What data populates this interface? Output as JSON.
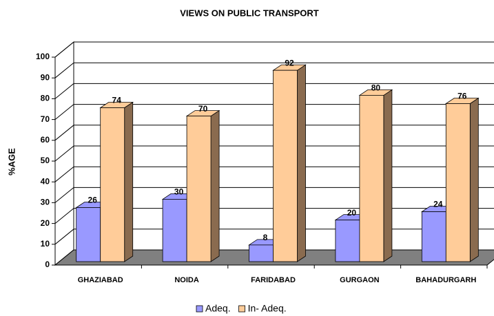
{
  "chart_data": {
    "type": "bar3d",
    "title": "VIEWS ON PUBLIC TRANSPORT",
    "y_label": "%AGE",
    "categories": [
      "GHAZIABAD",
      "NOIDA",
      "FARIDABAD",
      "GURGAON",
      "BAHADURGARH"
    ],
    "series": [
      {
        "name": "Adeq.",
        "color": "#9999ff",
        "side": "#6c6cb4",
        "values": [
          26,
          30,
          8,
          20,
          24
        ]
      },
      {
        "name": "In- Adeq.",
        "color": "#ffcc99",
        "side": "#8a6b4f",
        "values": [
          74,
          70,
          92,
          80,
          76
        ]
      }
    ],
    "ylim": [
      0,
      100
    ],
    "yticks": [
      0,
      10,
      20,
      30,
      40,
      50,
      60,
      70,
      80,
      90,
      100
    ],
    "grid": true,
    "legend": "bottom"
  }
}
